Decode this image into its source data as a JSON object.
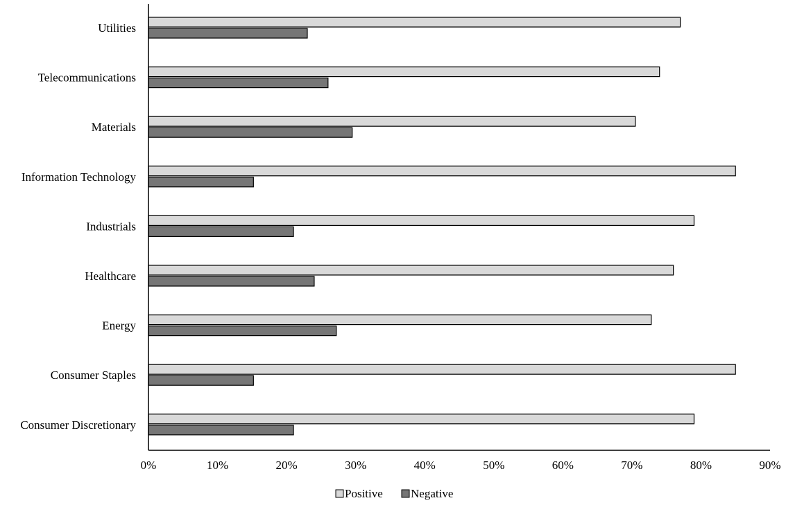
{
  "chart_data": {
    "type": "bar",
    "orientation": "horizontal",
    "categories": [
      "Utilities",
      "Telecommunications",
      "Materials",
      "Information Technology",
      "Industrials",
      "Healthcare",
      "Energy",
      "Consumer Staples",
      "Consumer Discretionary"
    ],
    "series": [
      {
        "name": "Positive",
        "values": [
          77,
          74,
          70.5,
          85,
          79,
          76,
          72.8,
          85,
          79
        ],
        "color": "#d9d9d9"
      },
      {
        "name": "Negative",
        "values": [
          23,
          26,
          29.5,
          15.2,
          21,
          24,
          27.2,
          15.2,
          21
        ],
        "color": "#767676"
      }
    ],
    "xlim": [
      0,
      90
    ],
    "xticks": [
      "0%",
      "10%",
      "20%",
      "30%",
      "40%",
      "50%",
      "60%",
      "70%",
      "80%",
      "90%"
    ],
    "grid": false,
    "legend_position": "bottom"
  }
}
